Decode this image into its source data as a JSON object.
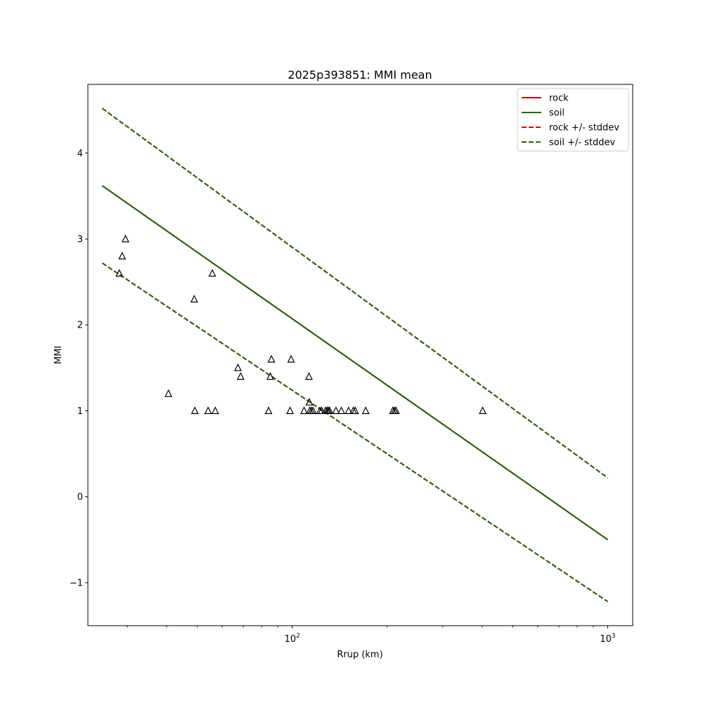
{
  "chart_data": {
    "type": "line",
    "title": "2025p393851: MMI mean",
    "xlabel": "Rrup (km)",
    "ylabel": "MMI",
    "xscale": "log",
    "xlim": [
      22.5,
      1200
    ],
    "ylim": [
      -1.5,
      4.8
    ],
    "x_ticks": [
      {
        "value": 100,
        "base": "10",
        "exp": "2"
      },
      {
        "value": 1000,
        "base": "10",
        "exp": "3"
      }
    ],
    "y_ticks": [
      {
        "value": -1,
        "label": "−1"
      },
      {
        "value": 0,
        "label": "0"
      },
      {
        "value": 1,
        "label": "1"
      },
      {
        "value": 2,
        "label": "2"
      },
      {
        "value": 3,
        "label": "3"
      },
      {
        "value": 4,
        "label": "4"
      }
    ],
    "legend_position": "top-right",
    "series": [
      {
        "name": "rock",
        "color": "#e00000",
        "dash": "solid",
        "x": [
          25,
          1000
        ],
        "y": [
          3.62,
          -0.5
        ]
      },
      {
        "name": "soil",
        "color": "#1f6a00",
        "dash": "solid",
        "x": [
          25,
          1000
        ],
        "y": [
          3.62,
          -0.5
        ]
      },
      {
        "name": "rock +/- stddev",
        "color": "#e00000",
        "dash": "dashed",
        "x": [
          25,
          1000
        ],
        "y": [
          4.52,
          0.22
        ]
      },
      {
        "name": "soil +/- stddev",
        "color": "#1f6a00",
        "dash": "dashed",
        "x": [
          25,
          1000
        ],
        "y": [
          4.52,
          0.22
        ]
      }
    ],
    "stddev_lower": {
      "x": [
        25,
        1000
      ],
      "y": [
        2.72,
        -1.22
      ]
    },
    "observations": {
      "marker": "open-triangle",
      "color": "#000000",
      "points": [
        [
          28.3,
          2.6
        ],
        [
          28.9,
          2.8
        ],
        [
          29.6,
          3.0
        ],
        [
          40.5,
          1.2
        ],
        [
          48.9,
          2.3
        ],
        [
          49.1,
          1.0
        ],
        [
          54.1,
          1.0
        ],
        [
          55.8,
          2.6
        ],
        [
          57.0,
          1.0
        ],
        [
          67.3,
          1.5
        ],
        [
          68.6,
          1.4
        ],
        [
          84.1,
          1.0
        ],
        [
          85.2,
          1.4
        ],
        [
          85.9,
          1.6
        ],
        [
          98.4,
          1.0
        ],
        [
          99.2,
          1.6
        ],
        [
          109.0,
          1.0
        ],
        [
          113.0,
          1.4
        ],
        [
          113.3,
          1.1
        ],
        [
          113.6,
          1.0
        ],
        [
          115.0,
          1.0
        ],
        [
          116.4,
          1.0
        ],
        [
          122.4,
          1.0
        ],
        [
          124.0,
          1.0
        ],
        [
          127.5,
          1.0
        ],
        [
          129.0,
          1.0
        ],
        [
          130.2,
          1.0
        ],
        [
          131.4,
          1.0
        ],
        [
          137.6,
          1.0
        ],
        [
          143.1,
          1.0
        ],
        [
          150.9,
          1.0
        ],
        [
          156.2,
          1.0
        ],
        [
          158.3,
          1.0
        ],
        [
          170.9,
          1.0
        ],
        [
          208.4,
          1.0
        ],
        [
          211.0,
          1.0
        ],
        [
          213.2,
          1.0
        ],
        [
          401.5,
          1.0
        ]
      ]
    }
  }
}
